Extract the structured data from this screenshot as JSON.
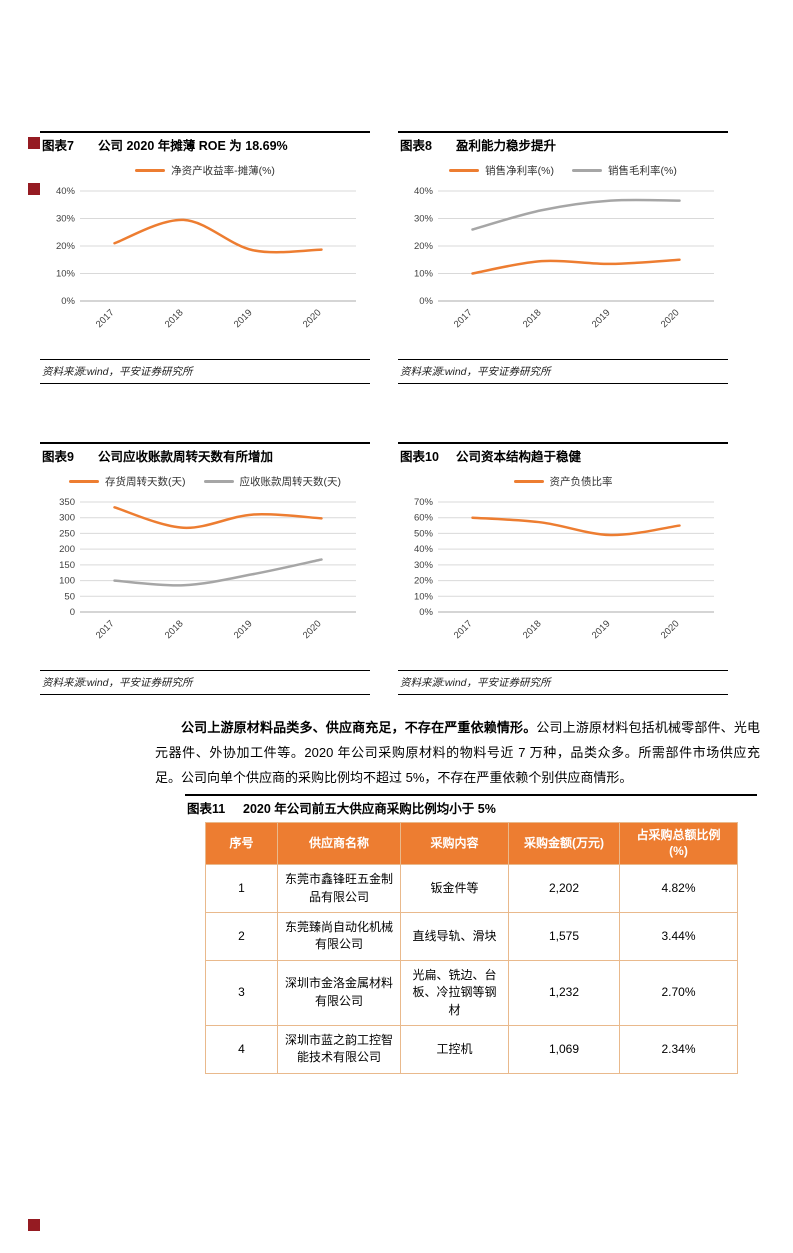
{
  "page": {
    "background": "#FFFFFF"
  },
  "colors": {
    "accent_orange": "#ED7D31",
    "series_gray": "#A6A6A6",
    "brand_red": "#951B22",
    "table_border": "#E9B98C"
  },
  "figures": [
    {
      "label": "图表7",
      "title": "公司 2020 年摊薄 ROE 为 18.69%",
      "source": "资料来源:wind，平安证券研究所"
    },
    {
      "label": "图表8",
      "title": "盈利能力稳步提升",
      "source": "资料来源:wind，平安证券研究所"
    },
    {
      "label": "图表9",
      "title": "公司应收账款周转天数有所增加",
      "source": "资料来源:wind，平安证券研究所"
    },
    {
      "label": "图表10",
      "title": "公司资本结构趋于稳健",
      "source": "资料来源:wind，平安证券研究所"
    },
    {
      "label": "图表11",
      "title": "2020 年公司前五大供应商采购比例均小于 5%"
    }
  ],
  "paragraph": {
    "lead_bold": "公司上游原材料品类多、供应商充足，不存在严重依赖情形。",
    "body": "公司上游原材料包括机械零部件、光电元器件、外协加工件等。2020 年公司采购原材料的物料号近 7 万种，品类众多。所需部件市场供应充足。公司向单个供应商的采购比例均不超过 5%，不存在严重依赖个别供应商情形。"
  },
  "table": {
    "headers": [
      "序号",
      "供应商名称",
      "采购内容",
      "采购金额(万元)",
      "占采购总额比例\n(%)"
    ],
    "rows": [
      [
        "1",
        "东莞市鑫锋旺五金制品有限公司",
        "钣金件等",
        "2,202",
        "4.82%"
      ],
      [
        "2",
        "东莞臻尚自动化机械有限公司",
        "直线导轨、滑块",
        "1,575",
        "3.44%"
      ],
      [
        "3",
        "深圳市金洛金属材料有限公司",
        "光扁、铣边、台板、冷拉钢等钢材",
        "1,232",
        "2.70%"
      ],
      [
        "4",
        "深圳市蓝之韵工控智能技术有限公司",
        "工控机",
        "1,069",
        "2.34%"
      ]
    ]
  },
  "chart_data": [
    {
      "type": "line",
      "title": "公司 2020 年摊薄 ROE 为 18.69%",
      "categories": [
        "2017",
        "2018",
        "2019",
        "2020"
      ],
      "series": [
        {
          "name": "净资产收益率-摊薄(%)",
          "color": "#ED7D31",
          "values": [
            21,
            29.5,
            18.5,
            18.69
          ]
        }
      ],
      "ylim": [
        0,
        40
      ],
      "ytick_step": 10,
      "ytick_format": "percent",
      "grid": true,
      "legend_position": "top",
      "smooth": true
    },
    {
      "type": "line",
      "title": "盈利能力稳步提升",
      "categories": [
        "2017",
        "2018",
        "2019",
        "2020"
      ],
      "series": [
        {
          "name": "销售净利率(%)",
          "color": "#ED7D31",
          "values": [
            10,
            14.5,
            13.5,
            15
          ]
        },
        {
          "name": "销售毛利率(%)",
          "color": "#A6A6A6",
          "values": [
            26,
            33,
            36.5,
            36.5
          ]
        }
      ],
      "ylim": [
        0,
        40
      ],
      "ytick_step": 10,
      "ytick_format": "percent",
      "grid": true,
      "legend_position": "top",
      "smooth": true
    },
    {
      "type": "line",
      "title": "公司应收账款周转天数有所增加",
      "categories": [
        "2017",
        "2018",
        "2019",
        "2020"
      ],
      "series": [
        {
          "name": "存货周转天数(天)",
          "color": "#ED7D31",
          "values": [
            333,
            268,
            310,
            298
          ]
        },
        {
          "name": "应收账款周转天数(天)",
          "color": "#A6A6A6",
          "values": [
            100,
            85,
            120,
            167
          ]
        }
      ],
      "ylim": [
        0,
        350
      ],
      "ytick_step": 50,
      "ytick_format": "number",
      "grid": true,
      "legend_position": "top",
      "smooth": true
    },
    {
      "type": "line",
      "title": "公司资本结构趋于稳健",
      "categories": [
        "2017",
        "2018",
        "2019",
        "2020"
      ],
      "series": [
        {
          "name": "资产负债比率",
          "color": "#ED7D31",
          "values": [
            60,
            57,
            49,
            55
          ]
        }
      ],
      "ylim": [
        0,
        70
      ],
      "ytick_step": 10,
      "ytick_format": "percent",
      "grid": true,
      "legend_position": "top",
      "smooth": true
    }
  ]
}
